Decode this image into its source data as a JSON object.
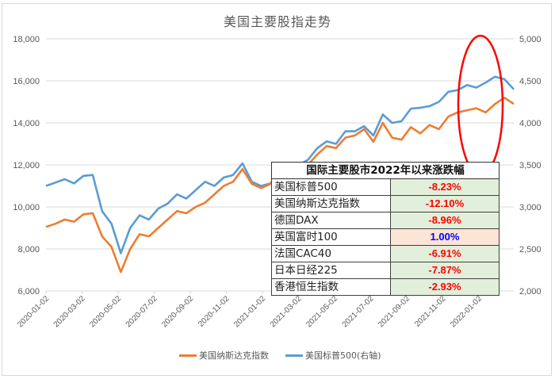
{
  "title": "美国主要股指走势",
  "colors": {
    "nasdaq": "#ED7D31",
    "sp500": "#5B9BD5",
    "gridline": "#D9D9D9",
    "highlight_ellipse": "#FF0000",
    "negative_text": "#FF0000",
    "positive_text": "#0000FF",
    "negative_cell_bg": "#E2EFDA",
    "positive_cell_bg": "#FCE4D6"
  },
  "legend": {
    "nasdaq_label": "美国纳斯达克指数",
    "sp500_label": "美国标普500(右轴)"
  },
  "table": {
    "title": "国际主要股市2022年以来涨跌幅",
    "rows": [
      {
        "name": "美国标普500",
        "value": "-8.23%",
        "positive": false
      },
      {
        "name": "美国纳斯达克指数",
        "value": "-12.10%",
        "positive": false
      },
      {
        "name": "德国DAX",
        "value": "-8.96%",
        "positive": false
      },
      {
        "name": "英国富时100",
        "value": "1.00%",
        "positive": true
      },
      {
        "name": "法国CAC40",
        "value": "-6.91%",
        "positive": false
      },
      {
        "name": "日本日经225",
        "value": "-7.87%",
        "positive": false
      },
      {
        "name": "香港恒生指数",
        "value": "-2.93%",
        "positive": false
      }
    ]
  },
  "chart_data": {
    "type": "line",
    "title": "美国主要股指走势",
    "xlabel": "",
    "ylabel": "",
    "y_left": {
      "range": [
        6000,
        18000
      ],
      "ticks": [
        "6,000",
        "8,000",
        "10,000",
        "12,000",
        "14,000",
        "16,000",
        "18,000"
      ]
    },
    "y_right": {
      "range": [
        2000,
        5000
      ],
      "ticks": [
        "2,000",
        "2,500",
        "3,000",
        "3,500",
        "4,000",
        "4,500",
        "5,000"
      ]
    },
    "x_ticks": [
      "2020-01-02",
      "2020-03-02",
      "2020-05-02",
      "2020-07-02",
      "2020-09-02",
      "2020-11-02",
      "2021-01-02",
      "2021-03-02",
      "2021-05-02",
      "2021-07-02",
      "2021-09-02",
      "2021-11-02",
      "2022-01-02"
    ],
    "grid": true,
    "legend_position": "bottom",
    "annotation": "red ellipse highlighting 2022 decline",
    "series": [
      {
        "name": "美国纳斯达克指数",
        "axis": "left",
        "x_fraction": [
          0,
          0.02,
          0.04,
          0.06,
          0.08,
          0.1,
          0.12,
          0.14,
          0.16,
          0.18,
          0.2,
          0.22,
          0.24,
          0.26,
          0.28,
          0.3,
          0.32,
          0.34,
          0.36,
          0.38,
          0.4,
          0.42,
          0.44,
          0.46,
          0.48,
          0.5,
          0.52,
          0.54,
          0.56,
          0.58,
          0.6,
          0.62,
          0.64,
          0.66,
          0.68,
          0.7,
          0.72,
          0.74,
          0.76,
          0.78,
          0.8,
          0.82,
          0.84,
          0.86,
          0.88,
          0.9,
          0.92,
          0.94,
          0.96,
          0.98,
          1.0
        ],
        "values": [
          9050,
          9200,
          9400,
          9300,
          9650,
          9700,
          8600,
          8100,
          6900,
          8000,
          8700,
          8600,
          9000,
          9400,
          9800,
          9700,
          10000,
          10200,
          10600,
          11000,
          11200,
          11800,
          11100,
          10900,
          11100,
          11800,
          10800,
          11900,
          12000,
          12500,
          12900,
          12800,
          13300,
          13400,
          13700,
          13100,
          14000,
          13300,
          13200,
          13800,
          13500,
          13900,
          13700,
          14300,
          14500,
          14600,
          14700,
          14500,
          14900,
          15200,
          14900
        ]
      },
      {
        "name": "美国标普500(右轴)",
        "axis": "right",
        "x_fraction": [
          0,
          0.02,
          0.04,
          0.06,
          0.08,
          0.1,
          0.12,
          0.14,
          0.16,
          0.18,
          0.2,
          0.22,
          0.24,
          0.26,
          0.28,
          0.3,
          0.32,
          0.34,
          0.36,
          0.38,
          0.4,
          0.42,
          0.44,
          0.46,
          0.48,
          0.5,
          0.52,
          0.54,
          0.56,
          0.58,
          0.6,
          0.62,
          0.64,
          0.66,
          0.68,
          0.7,
          0.72,
          0.74,
          0.76,
          0.78,
          0.8,
          0.82,
          0.84,
          0.86,
          0.88,
          0.9,
          0.92,
          0.94,
          0.96,
          0.98,
          1.0
        ],
        "values": [
          3250,
          3290,
          3330,
          3280,
          3370,
          3380,
          2950,
          2800,
          2450,
          2750,
          2900,
          2850,
          2980,
          3040,
          3150,
          3100,
          3200,
          3300,
          3250,
          3350,
          3380,
          3520,
          3300,
          3250,
          3280,
          3450,
          3280,
          3500,
          3560,
          3700,
          3780,
          3750,
          3900,
          3900,
          3960,
          3850,
          4100,
          4000,
          4020,
          4170,
          4180,
          4200,
          4250,
          4370,
          4390,
          4450,
          4420,
          4480,
          4550,
          4520,
          4400
        ]
      }
    ]
  }
}
